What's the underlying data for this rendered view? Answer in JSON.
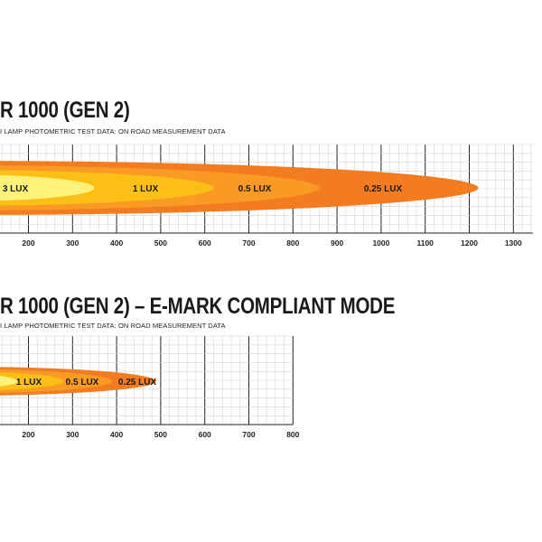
{
  "chart_data": [
    {
      "type": "area",
      "title": "R 1000 (GEN 2)",
      "subtitle": "I LAMP PHOTOMETRIC TEST DATA: ON ROAD MEASUREMENT DATA",
      "xlabel": "",
      "ylabel": "",
      "x_ticks": [
        200,
        300,
        400,
        500,
        600,
        700,
        800,
        900,
        1000,
        1100,
        1200,
        1300
      ],
      "xlim": [
        140,
        1400
      ],
      "grid": true,
      "series": [
        {
          "name": "0.25 LUX",
          "reach": 1220,
          "color": "#f47c20"
        },
        {
          "name": "0.5 LUX",
          "reach": 860,
          "color": "#f99a24"
        },
        {
          "name": "1 LUX",
          "reach": 620,
          "color": "#fbbf16"
        },
        {
          "name": "3 LUX",
          "reach": 350,
          "color": "#fff27a"
        }
      ]
    },
    {
      "type": "area",
      "title": "R 1000 (GEN 2) – E-MARK COMPLIANT MODE",
      "subtitle": "I LAMP PHOTOMETRIC TEST DATA: ON ROAD MEASUREMENT DATA",
      "xlabel": "",
      "ylabel": "",
      "x_ticks": [
        200,
        300,
        400,
        500,
        600,
        700,
        800
      ],
      "xlim": [
        140,
        800
      ],
      "grid": true,
      "series": [
        {
          "name": "0.25 LUX",
          "reach": 490,
          "color": "#f47c20"
        },
        {
          "name": "0.5 LUX",
          "reach": 390,
          "color": "#f99a24"
        },
        {
          "name": "1 LUX",
          "reach": 280,
          "color": "#fbbf16"
        },
        {
          "name": "",
          "reach": 175,
          "color": "#fff27a"
        }
      ]
    }
  ]
}
